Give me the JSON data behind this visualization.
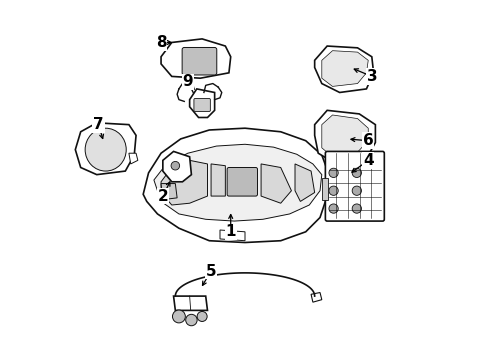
{
  "background_color": "#ffffff",
  "fig_width": 4.9,
  "fig_height": 3.6,
  "dpi": 100,
  "label_fontsize": 11,
  "line_color": "#111111",
  "line_width": 1.2,
  "labels_info": [
    [
      1,
      0.46,
      0.415,
      0.46,
      0.355
    ],
    [
      2,
      0.295,
      0.505,
      0.27,
      0.455
    ],
    [
      3,
      0.795,
      0.815,
      0.855,
      0.79
    ],
    [
      4,
      0.79,
      0.515,
      0.845,
      0.555
    ],
    [
      5,
      0.375,
      0.195,
      0.405,
      0.245
    ],
    [
      6,
      0.785,
      0.615,
      0.845,
      0.61
    ],
    [
      7,
      0.105,
      0.605,
      0.09,
      0.655
    ],
    [
      8,
      0.305,
      0.885,
      0.265,
      0.885
    ],
    [
      9,
      0.365,
      0.745,
      0.34,
      0.775
    ]
  ]
}
